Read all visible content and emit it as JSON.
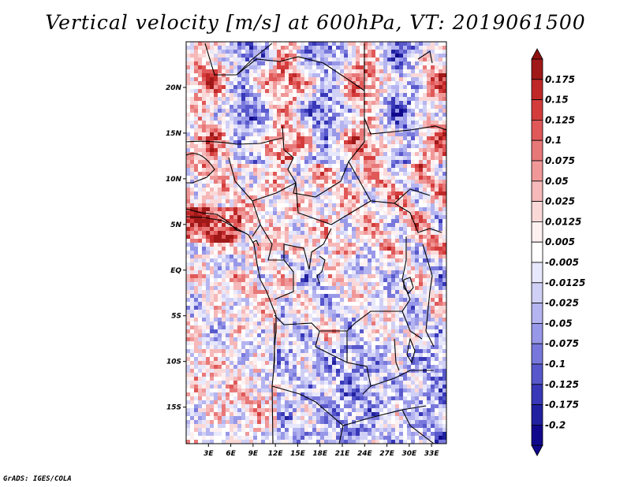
{
  "title": "Vertical velocity [m/s] at 600hPa, VT: 2019061500",
  "credit": "GrADS: IGES/COLA",
  "lat_labels": [
    "20N",
    "15N",
    "10N",
    "5N",
    "EQ",
    "5S",
    "10S",
    "15S"
  ],
  "lat_values": [
    20,
    15,
    10,
    5,
    0,
    -5,
    -10,
    -15
  ],
  "lon_labels": [
    "3E",
    "6E",
    "9E",
    "12E",
    "15E",
    "18E",
    "21E",
    "24E",
    "27E",
    "30E",
    "33E"
  ],
  "lon_values": [
    3,
    6,
    9,
    12,
    15,
    18,
    21,
    24,
    27,
    30,
    33
  ],
  "map_extent": {
    "lon_min": 0,
    "lon_max": 35,
    "lat_min": -19,
    "lat_max": 25
  },
  "colorbar": {
    "labels": [
      "0.175",
      "0.15",
      "0.125",
      "0.1",
      "0.075",
      "0.05",
      "0.025",
      "0.0125",
      "0.005",
      "-0.005",
      "-0.0125",
      "-0.025",
      "-0.05",
      "-0.075",
      "-0.1",
      "-0.125",
      "-0.175",
      "-0.2"
    ],
    "colors": [
      "#a01818",
      "#c02828",
      "#d43c3c",
      "#e05858",
      "#e87878",
      "#f09898",
      "#f6b8b8",
      "#fad8d8",
      "#fdf0f0",
      "#ffffff",
      "#e8e8fc",
      "#d0d0f6",
      "#b4b4f0",
      "#9898e8",
      "#7878dc",
      "#5858cc",
      "#3838b8",
      "#2020a0",
      "#10088c"
    ],
    "tip_top_color": "#901010",
    "tip_bottom_color": "#10088c"
  }
}
